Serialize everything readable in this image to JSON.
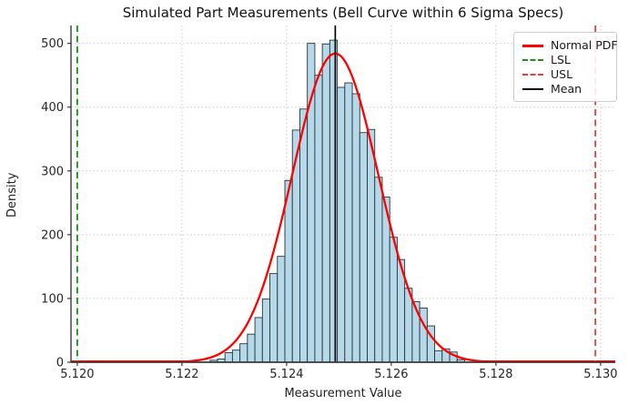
{
  "figure": {
    "background": "#ffffff"
  },
  "chart_data": {
    "type": "histogram_with_curve",
    "title": "Simulated Part Measurements (Bell Curve within 6 Sigma Specs)",
    "xlabel": "Measurement Value",
    "ylabel": "Density",
    "xlim": [
      5.11988,
      5.13028
    ],
    "ylim": [
      0,
      528
    ],
    "grid": {
      "visible": true,
      "style": "dotted",
      "color": "#c9c9c9"
    },
    "x_ticks": {
      "values": [
        5.12,
        5.122,
        5.124,
        5.126,
        5.128,
        5.13
      ],
      "labels": [
        "5.120",
        "5.122",
        "5.124",
        "5.126",
        "5.128",
        "5.130"
      ]
    },
    "y_ticks": {
      "values": [
        0,
        100,
        200,
        300,
        400,
        500
      ],
      "labels": [
        "0",
        "100",
        "200",
        "300",
        "400",
        "500"
      ]
    },
    "histogram": {
      "bin_start": 5.122536,
      "bin_width": 0.0001431,
      "densities": [
        3,
        5,
        15,
        19,
        29,
        44,
        70,
        99,
        139,
        166,
        285,
        364,
        397,
        500,
        450,
        499,
        505,
        431,
        438,
        421,
        360,
        365,
        290,
        259,
        196,
        161,
        116,
        95,
        85,
        57,
        18,
        21,
        16,
        4
      ],
      "fill_color": "#b5d9e9",
      "edge_color": "#26343c"
    },
    "normal_pdf": {
      "mean": 5.12493,
      "sigma": 0.000824,
      "peak_density": 484,
      "color": "#ff0000"
    },
    "reference_lines": [
      {
        "name": "lsl",
        "x": 5.12,
        "color": "#1e8c1e",
        "dash": "dashed",
        "label": "LSL"
      },
      {
        "name": "usl",
        "x": 5.1299,
        "color": "#ef3b3b",
        "dash": "dashed",
        "label": "USL"
      },
      {
        "name": "mean",
        "x": 5.12493,
        "color": "#000000",
        "dash": "solid",
        "label": "Mean"
      }
    ],
    "legend": {
      "position": "upper right",
      "items": [
        {
          "label": "Normal PDF",
          "color": "#ff0000",
          "line_style": "solid",
          "line_width": 3
        },
        {
          "label": "LSL",
          "color": "#1e8c1e",
          "line_style": "dashed",
          "line_width": 2
        },
        {
          "label": "USL",
          "color": "#ef3b3b",
          "line_style": "dashed",
          "line_width": 2
        },
        {
          "label": "Mean",
          "color": "#000000",
          "line_style": "solid",
          "line_width": 2
        }
      ]
    }
  }
}
